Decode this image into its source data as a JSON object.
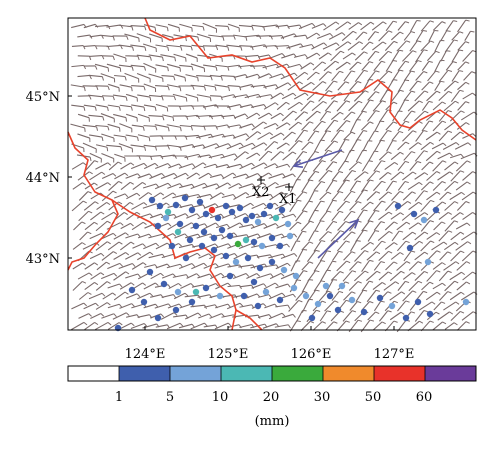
{
  "map": {
    "lat_labels": [
      "45°N",
      "44°N",
      "43°N"
    ],
    "lon_labels": [
      "124°E",
      "125°E",
      "126°E",
      "127°E"
    ],
    "markers": [
      {
        "id": "X1",
        "label": "X1"
      },
      {
        "id": "X2",
        "label": "X2"
      }
    ],
    "colors": {
      "border": "#e8432c",
      "wind_barb": "#7a6a6a",
      "arrow": "#5a5aa8",
      "frame": "#000000"
    }
  },
  "colorbar": {
    "ticks": [
      "1",
      "5",
      "10",
      "20",
      "30",
      "50",
      "60"
    ],
    "colors": [
      "#ffffff",
      "#3f5fad",
      "#74a3d8",
      "#4bb8b4",
      "#3aaa3c",
      "#f08a2c",
      "#e8322a",
      "#6a3b9a"
    ],
    "unit": "(mm)"
  }
}
